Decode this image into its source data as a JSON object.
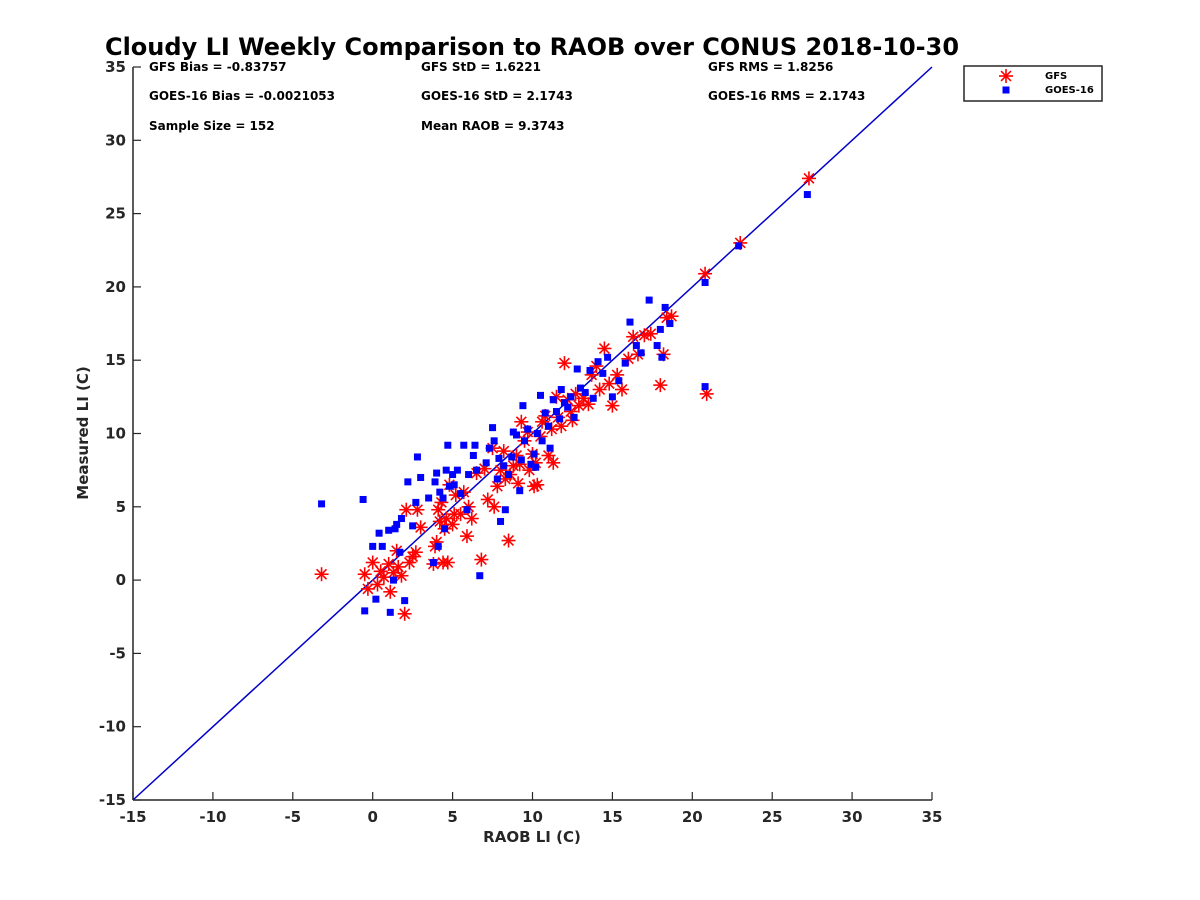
{
  "chart_data": {
    "type": "scatter",
    "title": "Cloudy LI Weekly Comparison to RAOB over CONUS 2018-10-30",
    "xlabel": "RAOB LI (C)",
    "ylabel": "Measured LI (C)",
    "xlim": [
      -15,
      35
    ],
    "ylim": [
      -15,
      35
    ],
    "xticks": [
      -15,
      -10,
      -5,
      0,
      5,
      10,
      15,
      20,
      25,
      30,
      35
    ],
    "yticks": [
      -15,
      -10,
      -5,
      0,
      5,
      10,
      15,
      20,
      25,
      30,
      35
    ],
    "grid": false,
    "legend_position": "top-right",
    "reference_line": {
      "x": [
        -15,
        35
      ],
      "y": [
        -15,
        35
      ],
      "color": "#0000cc"
    },
    "stats": [
      {
        "text": "GFS Bias = -0.83757"
      },
      {
        "text": "GFS StD = 1.6221"
      },
      {
        "text": "GFS RMS = 1.8256"
      },
      {
        "text": "GOES-16 Bias = -0.0021053"
      },
      {
        "text": "GOES-16 StD = 2.1743"
      },
      {
        "text": "GOES-16 RMS = 2.1743"
      },
      {
        "text": "Sample Size = 152"
      },
      {
        "text": "Mean RAOB = 9.3743"
      }
    ],
    "series": [
      {
        "name": "GFS",
        "marker": "asterisk",
        "color": "#ff0000",
        "points": [
          [
            -3.2,
            0.4
          ],
          [
            -0.5,
            0.4
          ],
          [
            -0.3,
            -0.6
          ],
          [
            0,
            1.2
          ],
          [
            0.3,
            -0.3
          ],
          [
            0.5,
            0.6
          ],
          [
            0.7,
            0.2
          ],
          [
            1,
            1.1
          ],
          [
            1.1,
            -0.8
          ],
          [
            1.3,
            0.5
          ],
          [
            1.5,
            2.0
          ],
          [
            1.6,
            0.9
          ],
          [
            1.8,
            0.3
          ],
          [
            2,
            -2.3
          ],
          [
            2.1,
            4.8
          ],
          [
            2.3,
            1.2
          ],
          [
            2.5,
            1.6
          ],
          [
            2.7,
            1.9
          ],
          [
            2.8,
            4.8
          ],
          [
            3,
            3.6
          ],
          [
            3.8,
            1.1
          ],
          [
            3.9,
            2.3
          ],
          [
            4,
            2.6
          ],
          [
            4.1,
            4.8
          ],
          [
            4.2,
            4.0
          ],
          [
            4.3,
            5.3
          ],
          [
            4.4,
            1.2
          ],
          [
            4.5,
            3.5
          ],
          [
            4.6,
            4.2
          ],
          [
            4.7,
            1.2
          ],
          [
            4.8,
            6.5
          ],
          [
            5,
            3.8
          ],
          [
            5.1,
            4.5
          ],
          [
            5.2,
            5.8
          ],
          [
            5.5,
            4.5
          ],
          [
            5.7,
            6.0
          ],
          [
            5.9,
            3.0
          ],
          [
            6,
            5.0
          ],
          [
            6.2,
            4.2
          ],
          [
            6.5,
            7.3
          ],
          [
            6.8,
            1.4
          ],
          [
            7,
            7.6
          ],
          [
            7.2,
            5.5
          ],
          [
            7.5,
            9.0
          ],
          [
            7.6,
            5.0
          ],
          [
            7.8,
            6.4
          ],
          [
            8,
            7.5
          ],
          [
            8.2,
            8.8
          ],
          [
            8.3,
            6.9
          ],
          [
            8.5,
            2.7
          ],
          [
            8.6,
            7.2
          ],
          [
            8.8,
            7.8
          ],
          [
            9,
            8.5
          ],
          [
            9.1,
            6.6
          ],
          [
            9.2,
            7.9
          ],
          [
            9.3,
            10.8
          ],
          [
            9.5,
            9.5
          ],
          [
            9.7,
            10.1
          ],
          [
            9.8,
            7.5
          ],
          [
            10,
            8.6
          ],
          [
            10.1,
            6.4
          ],
          [
            10.2,
            8.0
          ],
          [
            10.3,
            6.5
          ],
          [
            10.5,
            9.8
          ],
          [
            10.6,
            10.8
          ],
          [
            10.8,
            11.2
          ],
          [
            11,
            8.5
          ],
          [
            11.2,
            10.3
          ],
          [
            11.3,
            8.0
          ],
          [
            11.5,
            12.5
          ],
          [
            11.6,
            11.1
          ],
          [
            11.8,
            10.5
          ],
          [
            12,
            14.8
          ],
          [
            12.2,
            12.3
          ],
          [
            12.4,
            11.5
          ],
          [
            12.5,
            10.9
          ],
          [
            12.7,
            12.7
          ],
          [
            12.9,
            11.9
          ],
          [
            13.2,
            12.4
          ],
          [
            13.5,
            12.0
          ],
          [
            13.7,
            14.0
          ],
          [
            14,
            14.6
          ],
          [
            14.2,
            13.0
          ],
          [
            14.5,
            15.8
          ],
          [
            14.8,
            13.4
          ],
          [
            15,
            11.9
          ],
          [
            15.3,
            14.0
          ],
          [
            15.6,
            13.0
          ],
          [
            16,
            15.1
          ],
          [
            16.3,
            16.6
          ],
          [
            16.6,
            15.4
          ],
          [
            17,
            16.7
          ],
          [
            17.4,
            16.8
          ],
          [
            18,
            13.3
          ],
          [
            18.2,
            15.4
          ],
          [
            18.4,
            17.9
          ],
          [
            18.7,
            18.0
          ],
          [
            20.8,
            20.9
          ],
          [
            20.9,
            12.7
          ],
          [
            23,
            23.0
          ],
          [
            27.3,
            27.4
          ]
        ]
      },
      {
        "name": "GOES-16",
        "marker": "square",
        "color": "#0000ff",
        "points": [
          [
            -3.2,
            5.2
          ],
          [
            -0.6,
            5.5
          ],
          [
            -0.5,
            -2.1
          ],
          [
            0,
            2.3
          ],
          [
            0.2,
            -1.3
          ],
          [
            0.4,
            3.2
          ],
          [
            0.6,
            2.3
          ],
          [
            1,
            3.4
          ],
          [
            1.1,
            -2.2
          ],
          [
            1.3,
            0
          ],
          [
            1.4,
            3.5
          ],
          [
            1.5,
            3.8
          ],
          [
            1.7,
            1.9
          ],
          [
            1.8,
            4.2
          ],
          [
            2,
            -1.4
          ],
          [
            2.2,
            6.7
          ],
          [
            2.5,
            3.7
          ],
          [
            2.7,
            5.3
          ],
          [
            2.8,
            8.4
          ],
          [
            3,
            7.0
          ],
          [
            3.5,
            5.6
          ],
          [
            3.8,
            1.2
          ],
          [
            3.9,
            6.7
          ],
          [
            4,
            7.3
          ],
          [
            4.1,
            2.3
          ],
          [
            4.2,
            6.0
          ],
          [
            4.4,
            5.6
          ],
          [
            4.5,
            3.5
          ],
          [
            4.6,
            7.5
          ],
          [
            4.7,
            9.2
          ],
          [
            4.8,
            6.4
          ],
          [
            5,
            7.2
          ],
          [
            5.1,
            6.5
          ],
          [
            5.3,
            7.5
          ],
          [
            5.5,
            5.9
          ],
          [
            5.7,
            9.2
          ],
          [
            5.9,
            4.8
          ],
          [
            6,
            7.2
          ],
          [
            6.3,
            8.5
          ],
          [
            6.4,
            9.2
          ],
          [
            6.5,
            7.5
          ],
          [
            6.7,
            0.3
          ],
          [
            7.1,
            8.0
          ],
          [
            7.3,
            9.0
          ],
          [
            7.5,
            10.4
          ],
          [
            7.6,
            9.5
          ],
          [
            7.8,
            6.9
          ],
          [
            7.9,
            8.3
          ],
          [
            8,
            4.0
          ],
          [
            8.2,
            7.8
          ],
          [
            8.3,
            4.8
          ],
          [
            8.5,
            7.2
          ],
          [
            8.7,
            8.4
          ],
          [
            8.8,
            10.1
          ],
          [
            9,
            9.9
          ],
          [
            9.2,
            6.1
          ],
          [
            9.3,
            8.2
          ],
          [
            9.4,
            11.9
          ],
          [
            9.5,
            9.5
          ],
          [
            9.7,
            10.3
          ],
          [
            9.9,
            7.9
          ],
          [
            10.1,
            8.6
          ],
          [
            10.2,
            7.7
          ],
          [
            10.3,
            10.0
          ],
          [
            10.5,
            12.6
          ],
          [
            10.6,
            9.5
          ],
          [
            10.8,
            11.4
          ],
          [
            11,
            10.5
          ],
          [
            11.1,
            9.0
          ],
          [
            11.3,
            12.3
          ],
          [
            11.5,
            11.5
          ],
          [
            11.7,
            11.0
          ],
          [
            11.8,
            13.0
          ],
          [
            12,
            12.1
          ],
          [
            12.2,
            11.8
          ],
          [
            12.4,
            12.5
          ],
          [
            12.6,
            11.1
          ],
          [
            12.8,
            14.4
          ],
          [
            13,
            13.1
          ],
          [
            13.3,
            12.8
          ],
          [
            13.6,
            14.3
          ],
          [
            13.8,
            12.4
          ],
          [
            14.1,
            14.9
          ],
          [
            14.4,
            14.1
          ],
          [
            14.7,
            15.2
          ],
          [
            15,
            12.5
          ],
          [
            15.4,
            13.6
          ],
          [
            15.8,
            14.8
          ],
          [
            16.1,
            17.6
          ],
          [
            16.5,
            16.0
          ],
          [
            16.8,
            15.5
          ],
          [
            17.3,
            19.1
          ],
          [
            17.8,
            16.0
          ],
          [
            18,
            17.1
          ],
          [
            18.1,
            15.2
          ],
          [
            18.3,
            18.6
          ],
          [
            18.6,
            17.5
          ],
          [
            20.8,
            20.3
          ],
          [
            20.8,
            13.2
          ],
          [
            22.9,
            22.8
          ],
          [
            27.2,
            26.3
          ]
        ]
      }
    ]
  }
}
